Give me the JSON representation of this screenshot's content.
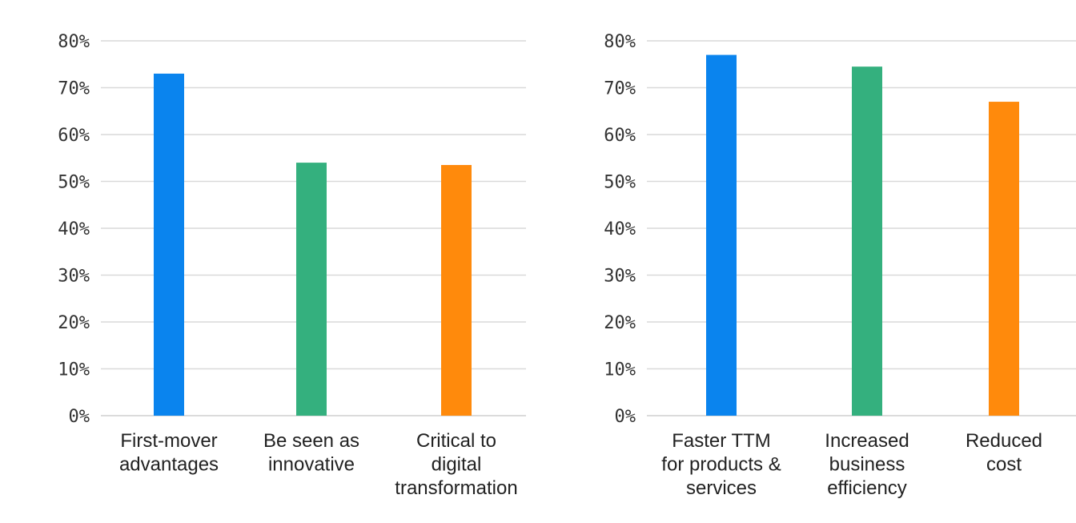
{
  "chart_data": [
    {
      "type": "bar",
      "categories": [
        [
          "First-mover",
          "advantages"
        ],
        [
          "Be seen as",
          "innovative"
        ],
        [
          "Critical to",
          "digital",
          "transformation"
        ]
      ],
      "values": [
        73,
        54,
        53.5
      ],
      "colors": [
        "#0a84ee",
        "#34b07e",
        "#ff8a0c"
      ],
      "ylim": [
        0,
        80
      ],
      "yticks": [
        "0%",
        "10%",
        "20%",
        "30%",
        "40%",
        "50%",
        "60%",
        "70%",
        "80%"
      ],
      "grid": true,
      "title": "",
      "xlabel": "",
      "ylabel": ""
    },
    {
      "type": "bar",
      "categories": [
        [
          "Faster TTM",
          "for products &",
          "services"
        ],
        [
          "Increased",
          "business",
          "efficiency"
        ],
        [
          "Reduced",
          "cost"
        ]
      ],
      "values": [
        77,
        74.5,
        67
      ],
      "colors": [
        "#0a84ee",
        "#34b07e",
        "#ff8a0c"
      ],
      "ylim": [
        0,
        80
      ],
      "yticks": [
        "0%",
        "10%",
        "20%",
        "30%",
        "40%",
        "50%",
        "60%",
        "70%",
        "80%"
      ],
      "grid": true,
      "title": "",
      "xlabel": "",
      "ylabel": ""
    }
  ]
}
